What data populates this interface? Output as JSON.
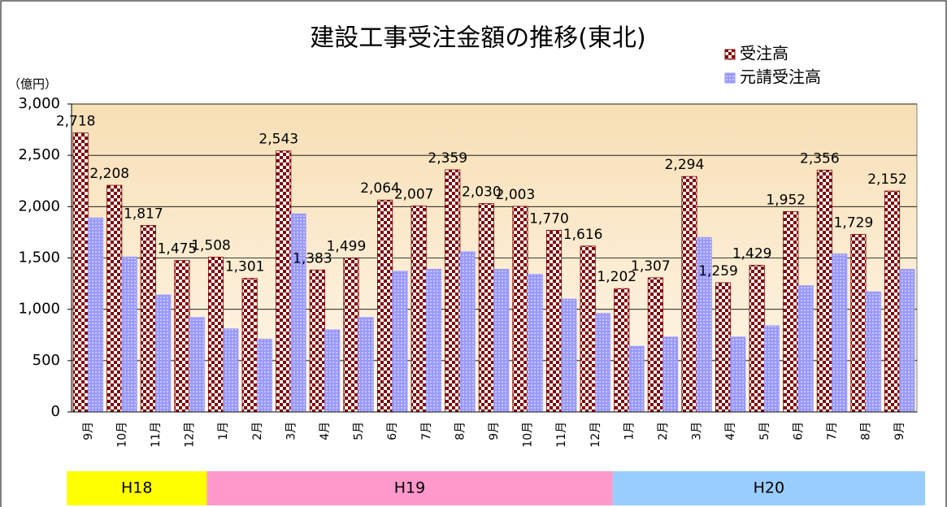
{
  "chart_data": {
    "type": "bar",
    "title": "建設工事受注金額の推移(東北)",
    "y_label": "（億円）",
    "categories": [
      "9月",
      "10月",
      "11月",
      "12月",
      "1月",
      "2月",
      "3月",
      "4月",
      "5月",
      "6月",
      "7月",
      "8月",
      "9月",
      "10月",
      "11月",
      "12月",
      "1月",
      "2月",
      "3月",
      "4月",
      "5月",
      "6月",
      "7月",
      "8月",
      "9月"
    ],
    "series": [
      {
        "name": "受注高",
        "color": "#800000",
        "values": [
          2718,
          2208,
          1817,
          1475,
          1508,
          1301,
          2543,
          1383,
          1499,
          2064,
          2007,
          2359,
          2030,
          2003,
          1770,
          1616,
          1202,
          1307,
          2294,
          1259,
          1429,
          1952,
          2356,
          1729,
          2152
        ],
        "value_labels": [
          "2,718",
          "2,208",
          "1,817",
          "1,475",
          "1,508",
          "1,301",
          "2,543",
          "1,383",
          "1,499",
          "2,064",
          "2,007",
          "2,359",
          "2,030",
          "2,003",
          "1,770",
          "1,616",
          "1,202",
          "1,307",
          "2,294",
          "1,259",
          "1,429",
          "1,952",
          "2,356",
          "1,729",
          "2,152"
        ]
      },
      {
        "name": "元請受注高",
        "color": "#9999ff",
        "values": [
          1890,
          1510,
          1140,
          920,
          810,
          710,
          1930,
          800,
          920,
          1370,
          1390,
          1560,
          1390,
          1340,
          1100,
          960,
          640,
          730,
          1700,
          730,
          840,
          1230,
          1540,
          1170,
          1390
        ]
      }
    ],
    "ylim": [
      0,
      3000
    ],
    "yticks": [
      0,
      500,
      {
        "value": 1000,
        "label": "1,000"
      },
      {
        "value": 1500,
        "label": "1,500"
      },
      {
        "value": 2000,
        "label": "2,000"
      },
      {
        "value": 2500,
        "label": "2,500"
      },
      {
        "value": 3000,
        "label": "3,000"
      }
    ],
    "grid": true,
    "legend": "top-right",
    "periods": [
      {
        "label": "H18",
        "color": "#ffff00",
        "count": 4
      },
      {
        "label": "H19",
        "color": "#ff99cc",
        "count": 12
      },
      {
        "label": "H20",
        "color": "#99ccff",
        "count": 9
      }
    ]
  }
}
